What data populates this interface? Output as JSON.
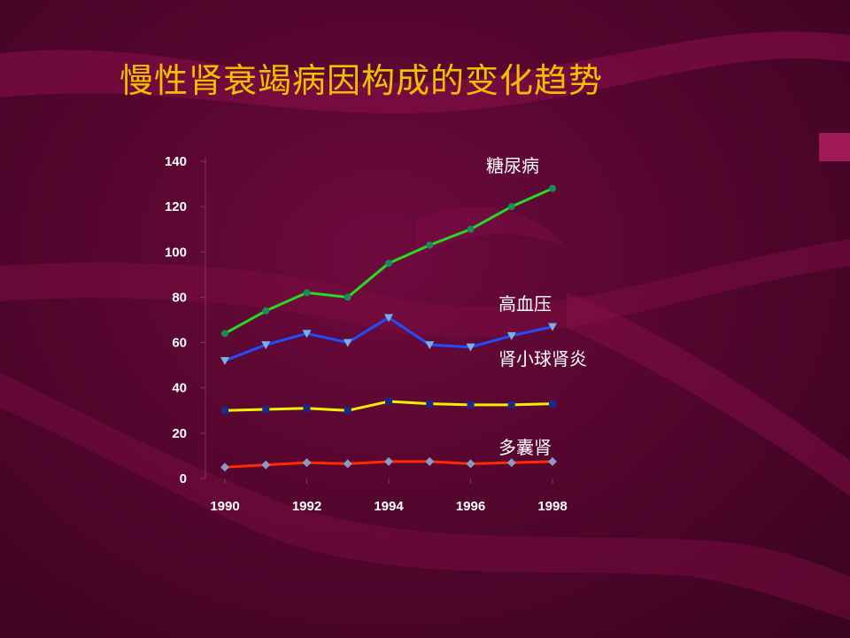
{
  "slide": {
    "title": "慢性肾衰竭病因构成的变化趋势"
  },
  "chart_data": {
    "type": "line",
    "x": [
      1990,
      1991,
      1992,
      1993,
      1994,
      1995,
      1996,
      1997,
      1998
    ],
    "x_tick_labels": [
      "1990",
      "1992",
      "1994",
      "1996",
      "1998"
    ],
    "y_tick_labels": [
      "0",
      "20",
      "40",
      "60",
      "80",
      "100",
      "120",
      "140"
    ],
    "ylim": [
      0,
      140
    ],
    "series": [
      {
        "name": "糖尿病",
        "color": "#22dd22",
        "marker": "circle",
        "marker_color": "#1a8a5a",
        "values": [
          64,
          74,
          82,
          80,
          95,
          103,
          110,
          120,
          128
        ]
      },
      {
        "name": "高血压",
        "color": "#1e4fff",
        "marker": "triangle",
        "marker_color": "#7ab0e0",
        "values": [
          52,
          59,
          64,
          60,
          71,
          59,
          58,
          63,
          67
        ]
      },
      {
        "name": "肾小球肾炎",
        "color": "#f4f000",
        "marker": "square",
        "marker_color": "#1a2a8a",
        "values": [
          30,
          30.5,
          31,
          30,
          34,
          33,
          32.5,
          32.5,
          33
        ]
      },
      {
        "name": "多囊肾",
        "color": "#ff2a00",
        "marker": "diamond",
        "marker_color": "#8a9ac8",
        "values": [
          5,
          6,
          7,
          6.5,
          7.5,
          7.5,
          6.5,
          7,
          7.5
        ]
      }
    ],
    "label_order_note_free": true
  }
}
